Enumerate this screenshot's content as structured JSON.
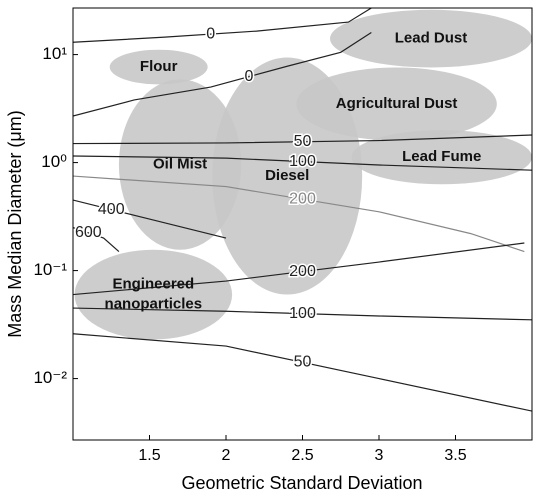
{
  "chart_data": {
    "type": "contour",
    "xlabel": "Geometric Standard Deviation",
    "ylabel": "Mass Median Diameter (μm)",
    "xlim": [
      1.0,
      4.0
    ],
    "xticks": [
      1.5,
      2,
      2.5,
      3,
      3.5
    ],
    "ylim": [
      0.0027,
      27
    ],
    "log_y": true,
    "yticks": [
      {
        "value": 0.01,
        "label": "10⁻²"
      },
      {
        "value": 0.1,
        "label": "10⁻¹"
      },
      {
        "value": 1,
        "label": "10⁰"
      },
      {
        "value": 10,
        "label": "10¹"
      }
    ],
    "region_color": "#c8c8c8",
    "regions": [
      {
        "name": "Lead Dust",
        "x": [
          2.68,
          4.0
        ],
        "y": [
          7.6,
          26
        ]
      },
      {
        "name": "Flour",
        "x": [
          1.24,
          1.88
        ],
        "y": [
          5.3,
          11.1
        ]
      },
      {
        "name": "Agricultural Dust",
        "x": [
          2.46,
          3.77
        ],
        "y": [
          1.6,
          7.6
        ]
      },
      {
        "name": "Lead Fume",
        "x": [
          2.82,
          4.0
        ],
        "y": [
          0.63,
          2.0
        ]
      },
      {
        "name": "Oil Mist",
        "x": [
          1.3,
          2.1
        ],
        "y": [
          0.156,
          5.9
        ]
      },
      {
        "name": "Diesel",
        "x": [
          1.91,
          2.89
        ],
        "y": [
          0.06,
          9.4
        ]
      },
      {
        "name": "Engineered nanoparticles",
        "x": [
          1.01,
          2.04
        ],
        "y": [
          0.023,
          0.156
        ]
      }
    ],
    "contours": [
      {
        "level": 0,
        "color": "#222222",
        "x": [
          1.0,
          1.6,
          2.2,
          2.8,
          2.95
        ],
        "y": [
          13,
          14.5,
          16.5,
          20,
          27
        ]
      },
      {
        "level": 0,
        "color": "#222222",
        "x": [
          1.0,
          1.4,
          1.9,
          2.4,
          2.75,
          2.95
        ],
        "y": [
          2.7,
          3.8,
          5.0,
          7.8,
          10.5,
          16
        ]
      },
      {
        "level": 50,
        "color": "#222222",
        "x": [
          1.0,
          2.0,
          3.0,
          4.0
        ],
        "y": [
          1.5,
          1.52,
          1.6,
          1.8
        ]
      },
      {
        "level": 100,
        "color": "#222222",
        "x": [
          1.0,
          2.0,
          3.0,
          4.0
        ],
        "y": [
          1.15,
          1.1,
          0.95,
          0.85
        ]
      },
      {
        "level": 200,
        "color": "#888888",
        "x": [
          1.0,
          2.0,
          3.0,
          3.6,
          3.95
        ],
        "y": [
          0.75,
          0.6,
          0.35,
          0.22,
          0.15
        ]
      },
      {
        "level": 400,
        "color": "#222222",
        "x": [
          1.0,
          1.5,
          2.0
        ],
        "y": [
          0.45,
          0.3,
          0.2
        ]
      },
      {
        "level": 600,
        "color": "#222222",
        "x": [
          1.0,
          1.2,
          1.3
        ],
        "y": [
          0.25,
          0.2,
          0.15
        ]
      },
      {
        "level": 200,
        "color": "#222222",
        "x": [
          1.0,
          2.0,
          3.0,
          3.95
        ],
        "y": [
          0.06,
          0.08,
          0.12,
          0.18
        ]
      },
      {
        "level": 100,
        "color": "#222222",
        "x": [
          1.0,
          2.0,
          3.0,
          4.0
        ],
        "y": [
          0.045,
          0.042,
          0.038,
          0.035
        ]
      },
      {
        "level": 50,
        "color": "#222222",
        "x": [
          1.0,
          2.0,
          3.0,
          4.0
        ],
        "y": [
          0.026,
          0.02,
          0.01,
          0.005
        ]
      }
    ]
  }
}
